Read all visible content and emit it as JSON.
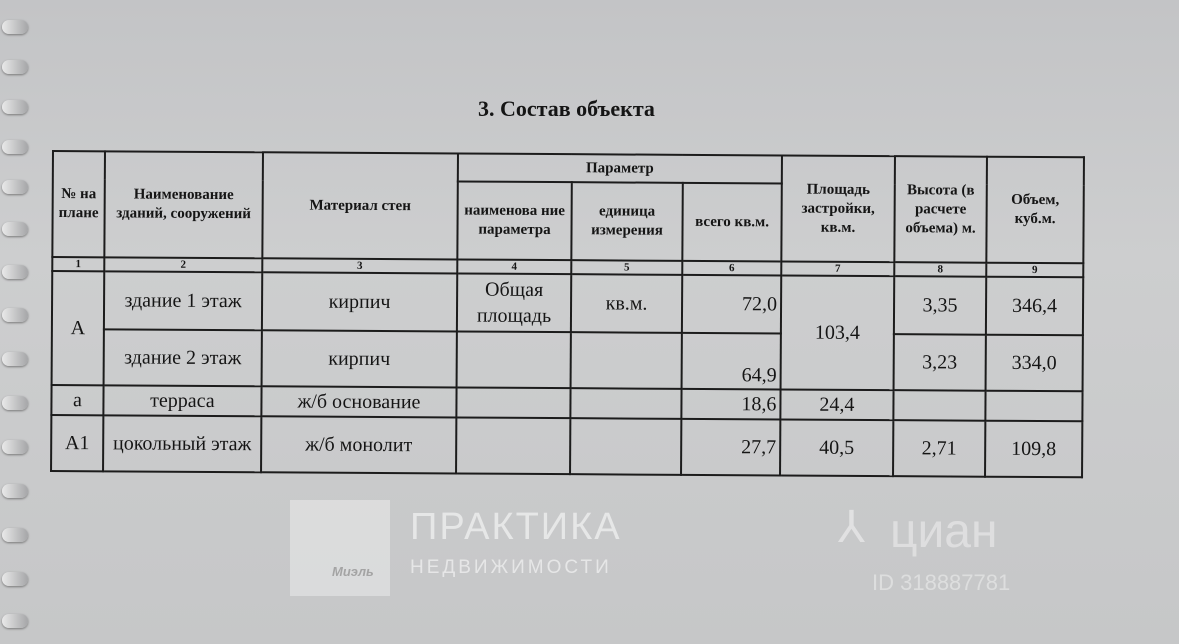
{
  "title": "3.  Состав объекта",
  "headers": {
    "num": "№ на плане",
    "name": "Наименование зданий, сооружений",
    "material": "Материал стен",
    "param": "Параметр",
    "param_name": "наименова ние параметра",
    "unit": "единица измерения",
    "total": "всего кв.м.",
    "built_area": "Площадь застройки, кв.м.",
    "height": "Высота (в расчете объема) м.",
    "volume": "Объем, куб.м."
  },
  "col_numbers": [
    "1",
    "2",
    "3",
    "4",
    "5",
    "6",
    "7",
    "8",
    "9"
  ],
  "rows": [
    {
      "num": "А",
      "name": "здание 1 этаж",
      "material": "кирпич",
      "param_name": "Общая площадь",
      "unit": "кв.м.",
      "total": "72,0",
      "built_area": "103,4",
      "height": "3,35",
      "volume": "346,4"
    },
    {
      "name": "здание 2 этаж",
      "material": "кирпич",
      "param_name": "",
      "unit": "",
      "total": "64,9",
      "height": "3,23",
      "volume": "334,0"
    },
    {
      "num": "а",
      "name": "терраса",
      "material": "ж/б основание",
      "param_name": "",
      "unit": "",
      "total": "18,6",
      "built_area": "24,4",
      "height": "",
      "volume": ""
    },
    {
      "num": "А1",
      "name": "цокольный этаж",
      "material": "ж/б монолит",
      "param_name": "",
      "unit": "",
      "total": "27,7",
      "built_area": "40,5",
      "height": "2,71",
      "volume": "109,8"
    }
  ],
  "watermarks": {
    "praktika_line1": "ПРАКТИКА",
    "praktika_line2": "НЕДВИЖИМОСТИ",
    "miel": "Миэль",
    "cian": "циан",
    "cian_id": "ID 318887781"
  }
}
